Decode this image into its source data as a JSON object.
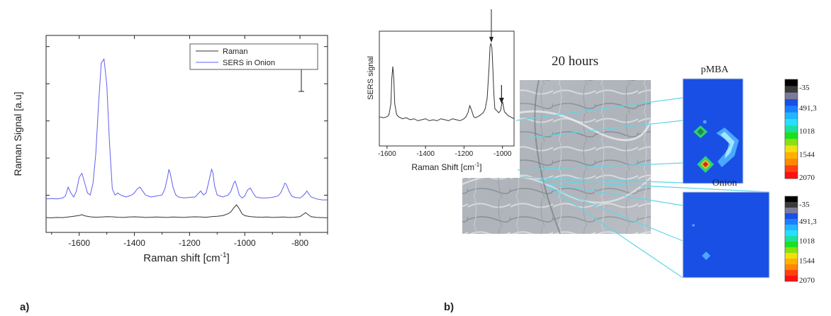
{
  "panel_a": {
    "label": "a)",
    "chart_data": {
      "type": "line",
      "xlabel": "Raman shift [cm",
      "xlabel_sup": "-1",
      "xlabel_end": "]",
      "ylabel": "Raman Signal [a.u]",
      "xlim": [
        -1720,
        -700
      ],
      "ylim": [
        0,
        100
      ],
      "xticks": [
        -1600,
        -1400,
        -1200,
        -1000,
        -800
      ],
      "xtick_labels": [
        "-1600",
        "-1400",
        "-1200",
        "-1000",
        "-800"
      ],
      "legend_position": "top-right",
      "scale_bar": true,
      "series": [
        {
          "name": "Raman",
          "color": "#333333",
          "x": [
            -1720,
            -1700,
            -1680,
            -1660,
            -1640,
            -1620,
            -1600,
            -1590,
            -1580,
            -1560,
            -1540,
            -1520,
            -1500,
            -1480,
            -1460,
            -1440,
            -1420,
            -1400,
            -1380,
            -1360,
            -1340,
            -1320,
            -1300,
            -1280,
            -1260,
            -1240,
            -1220,
            -1200,
            -1180,
            -1160,
            -1140,
            -1120,
            -1100,
            -1080,
            -1060,
            -1050,
            -1040,
            -1030,
            -1020,
            -1010,
            -1000,
            -980,
            -960,
            -940,
            -920,
            -900,
            -880,
            -860,
            -840,
            -820,
            -800,
            -790,
            -780,
            -770,
            -760,
            -740,
            -720,
            -700
          ],
          "y": [
            7.5,
            7.4,
            7.6,
            7.5,
            7.8,
            8.2,
            8.6,
            9.0,
            8.4,
            7.9,
            7.7,
            7.8,
            8.0,
            7.9,
            7.7,
            7.6,
            7.8,
            7.9,
            7.8,
            7.6,
            7.7,
            7.8,
            7.7,
            7.6,
            7.8,
            7.7,
            7.6,
            7.8,
            7.9,
            7.8,
            7.7,
            8.0,
            8.2,
            8.5,
            9.5,
            10.5,
            12.5,
            14.0,
            12.0,
            9.5,
            8.5,
            8.0,
            7.8,
            7.7,
            7.8,
            7.6,
            7.7,
            7.8,
            7.6,
            7.7,
            8.0,
            9.0,
            10.0,
            9.0,
            8.0,
            7.6,
            7.5,
            7.4
          ]
        },
        {
          "name": "SERS in Onion",
          "color": "#6060f0",
          "x": [
            -1720,
            -1700,
            -1680,
            -1660,
            -1650,
            -1640,
            -1630,
            -1620,
            -1610,
            -1600,
            -1590,
            -1580,
            -1570,
            -1560,
            -1550,
            -1540,
            -1530,
            -1520,
            -1510,
            -1500,
            -1490,
            -1480,
            -1470,
            -1460,
            -1450,
            -1440,
            -1430,
            -1420,
            -1410,
            -1400,
            -1390,
            -1380,
            -1370,
            -1360,
            -1340,
            -1320,
            -1300,
            -1290,
            -1280,
            -1275,
            -1270,
            -1260,
            -1250,
            -1240,
            -1220,
            -1200,
            -1180,
            -1170,
            -1160,
            -1150,
            -1140,
            -1130,
            -1120,
            -1115,
            -1110,
            -1100,
            -1090,
            -1080,
            -1060,
            -1050,
            -1040,
            -1035,
            -1030,
            -1020,
            -1010,
            -1000,
            -990,
            -980,
            -970,
            -960,
            -940,
            -920,
            -900,
            -880,
            -870,
            -860,
            -855,
            -850,
            -840,
            -830,
            -820,
            -800,
            -790,
            -780,
            -775,
            -770,
            -760,
            -740,
            -720,
            -700
          ],
          "y": [
            17.0,
            17.2,
            17.0,
            17.5,
            18.5,
            23.0,
            20.0,
            18.0,
            21.0,
            28.0,
            30.0,
            25.0,
            20.0,
            19.0,
            25.0,
            40.0,
            65.0,
            86.0,
            88.0,
            75.0,
            45.0,
            22.0,
            19.0,
            20.0,
            19.0,
            18.5,
            18.0,
            18.5,
            19.0,
            20.0,
            22.0,
            23.0,
            21.0,
            19.0,
            18.0,
            18.5,
            19.0,
            22.0,
            28.0,
            32.0,
            30.0,
            23.0,
            19.0,
            18.0,
            17.5,
            17.8,
            18.0,
            19.5,
            21.0,
            19.0,
            20.0,
            26.0,
            32.0,
            30.0,
            24.0,
            19.0,
            18.5,
            18.0,
            19.0,
            21.0,
            25.0,
            26.0,
            24.0,
            19.0,
            17.5,
            18.5,
            21.5,
            22.5,
            20.0,
            18.0,
            17.5,
            17.5,
            17.8,
            18.5,
            20.0,
            23.0,
            25.0,
            24.5,
            21.0,
            18.5,
            17.8,
            17.5,
            18.5,
            20.0,
            21.0,
            20.0,
            18.0,
            17.0,
            16.5,
            16.5
          ]
        }
      ]
    }
  },
  "panel_b": {
    "label": "b)",
    "time_label": "20 hours",
    "inset_chart": {
      "type": "line",
      "ylabel": "SERS signal",
      "xlabel": "Raman Shift [cm",
      "xlabel_sup": "-1",
      "xlabel_end": "]",
      "xlim": [
        -1640,
        -940
      ],
      "xtick_labels": [
        "-1600",
        "-1400",
        "-1200",
        "-1000"
      ],
      "xticks": [
        -1600,
        -1400,
        -1200,
        -1000
      ],
      "series": [
        {
          "name": "",
          "color": "#333333",
          "x": [
            -1640,
            -1620,
            -1600,
            -1590,
            -1580,
            -1575,
            -1570,
            -1565,
            -1560,
            -1550,
            -1540,
            -1520,
            -1500,
            -1480,
            -1460,
            -1440,
            -1420,
            -1400,
            -1380,
            -1360,
            -1340,
            -1320,
            -1300,
            -1280,
            -1260,
            -1240,
            -1220,
            -1200,
            -1190,
            -1180,
            -1170,
            -1160,
            -1150,
            -1140,
            -1120,
            -1100,
            -1090,
            -1080,
            -1070,
            -1065,
            -1060,
            -1055,
            -1050,
            -1045,
            -1040,
            -1030,
            -1020,
            -1010,
            -1005,
            -1000,
            -995,
            -990,
            -980,
            -970,
            -960,
            -950,
            -940
          ],
          "y": [
            22,
            21,
            22,
            24,
            35,
            60,
            72,
            60,
            35,
            24,
            22,
            20,
            21,
            19,
            20,
            18,
            19,
            20,
            18,
            19,
            18,
            20,
            19,
            18,
            20,
            19,
            18,
            20,
            22,
            26,
            33,
            28,
            22,
            21,
            23,
            26,
            30,
            40,
            70,
            92,
            95,
            90,
            70,
            45,
            30,
            28,
            26,
            28,
            34,
            37,
            32,
            27,
            25,
            23,
            22,
            21,
            20
          ]
        }
      ],
      "arrows": [
        -1058,
        -1005
      ]
    },
    "maps": [
      {
        "title": "pMBA",
        "scale_labels": [
          "-35",
          "491,3",
          "1018",
          "1544",
          "2070"
        ],
        "scale_colors": [
          "#000000",
          "#1a7fff",
          "#1de01d",
          "#ff8800",
          "#ff1010"
        ]
      },
      {
        "title": "Onion",
        "scale_labels": [
          "-35",
          "491,3",
          "1018",
          "1544",
          "2070"
        ],
        "scale_colors": [
          "#000000",
          "#1a7fff",
          "#1de01d",
          "#ff8800",
          "#ff1010"
        ]
      }
    ]
  }
}
